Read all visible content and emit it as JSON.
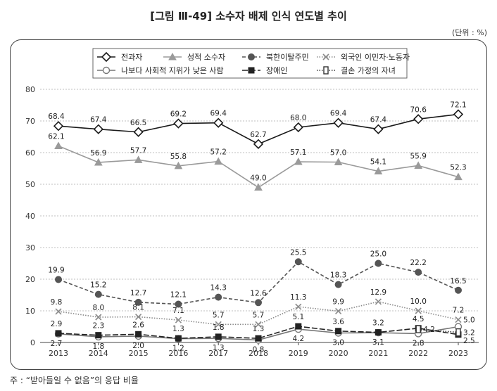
{
  "header": {
    "title": "[그림 Ⅲ-49] 소수자 배제 인식 연도별 추이",
    "unit": "(단위 : %)"
  },
  "footer": {
    "note": "주 : “받아들일 수 없음”의 응답 비율"
  },
  "chart_data": {
    "type": "line",
    "title": "[그림 Ⅲ-49] 소수자 배제 인식 연도별 추이",
    "xlabel": "",
    "ylabel": "",
    "categories": [
      "2013",
      "2014",
      "2015",
      "2016",
      "2017",
      "2018",
      "2019",
      "2020",
      "2021",
      "2022",
      "2023"
    ],
    "ylim": [
      0,
      80
    ],
    "yticks": [
      0,
      10,
      20,
      30,
      40,
      50,
      60,
      70,
      80
    ],
    "grid": true,
    "legend_position": "top",
    "series": [
      {
        "name": "전과자",
        "values": [
          68.4,
          67.4,
          66.5,
          69.2,
          69.4,
          62.7,
          68.0,
          69.4,
          67.4,
          70.6,
          72.1
        ],
        "color": "#1a1a1a",
        "marker": "diamond",
        "dash": "solid",
        "label_pos": "above"
      },
      {
        "name": "성적 소수자",
        "values": [
          62.1,
          56.9,
          57.7,
          55.8,
          57.2,
          49.0,
          57.1,
          57.0,
          54.1,
          55.9,
          52.3
        ],
        "color": "#9a9a9a",
        "marker": "triangle",
        "dash": "solid",
        "label_pos": "above"
      },
      {
        "name": "북한이탈주민",
        "values": [
          19.9,
          15.2,
          12.7,
          12.1,
          14.3,
          12.6,
          25.5,
          18.3,
          25.0,
          22.2,
          16.5
        ],
        "color": "#555555",
        "marker": "circle-filled",
        "dash": "dashed",
        "label_pos": "above"
      },
      {
        "name": "외국인 이민자·노동자",
        "values": [
          9.8,
          8.0,
          8.1,
          7.1,
          5.7,
          5.7,
          11.3,
          9.9,
          12.9,
          10.0,
          7.2
        ],
        "color": "#8a8a8a",
        "marker": "x",
        "dash": "dotted",
        "label_pos": "above"
      },
      {
        "name": "나보다 사회적 지위가 낮은 사람",
        "values": [
          2.7,
          1.8,
          2.0,
          1.2,
          1.3,
          0.8,
          4.2,
          3.0,
          3.1,
          2.8,
          5.0
        ],
        "color": "#777777",
        "marker": "circle-open",
        "dash": "solid",
        "label_pos": "mixed"
      },
      {
        "name": "장애인",
        "values": [
          2.9,
          2.3,
          2.6,
          1.3,
          1.8,
          1.3,
          5.1,
          3.6,
          3.2,
          4.5,
          2.5
        ],
        "color": "#222222",
        "marker": "square",
        "dash": "long-dash",
        "label_pos": "above"
      },
      {
        "name": "결손 가정의 자녀",
        "values": [
          null,
          null,
          null,
          null,
          null,
          null,
          null,
          null,
          null,
          4.2,
          3.2
        ],
        "color": "#333333",
        "marker": "square-open",
        "dash": "dotted",
        "label_pos": "right"
      }
    ]
  }
}
